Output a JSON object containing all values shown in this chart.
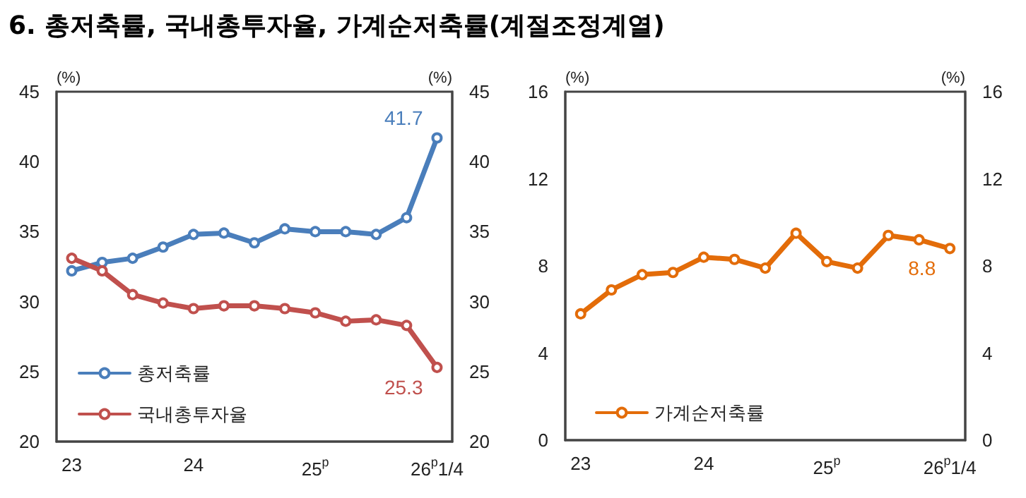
{
  "chart_data": [
    {
      "type": "line",
      "title": "6. 총저축률, 국내총투자율, 가계순저축률(계절조정계열)",
      "ylabel": "(%)",
      "y2label": "(%)",
      "categories": [
        "23",
        null,
        null,
        null,
        "24",
        null,
        null,
        null,
        "25$^{p}$",
        null,
        null,
        null,
        "26$^{p}$1/4"
      ],
      "ylim": [
        20,
        45
      ],
      "yticks": [
        20,
        25,
        30,
        35,
        40,
        45
      ],
      "y2lim": [
        20,
        45
      ],
      "y2ticks": [
        20,
        25,
        30,
        35,
        40,
        45
      ],
      "grid": false,
      "legend": "bottom left",
      "marker": "circle",
      "line_style": "solid",
      "series": [
        {
          "name": "총저축률",
          "color": "#4a7ebb",
          "values": [
            32.2,
            32.8,
            33.1,
            33.9,
            34.8,
            34.9,
            34.2,
            35.2,
            35.0,
            35.0,
            34.8,
            36.0,
            41.7
          ],
          "value_labels": [
            null,
            null,
            null,
            null,
            null,
            null,
            null,
            null,
            null,
            null,
            null,
            null,
            "41.7"
          ]
        },
        {
          "name": "국내총투자율",
          "color": "#c0504d",
          "values": [
            33.1,
            32.2,
            30.5,
            29.9,
            29.5,
            29.7,
            29.7,
            29.5,
            29.2,
            28.6,
            28.7,
            28.3,
            25.3
          ],
          "value_labels": [
            null,
            null,
            null,
            null,
            null,
            null,
            null,
            null,
            null,
            null,
            null,
            null,
            "25.3"
          ]
        }
      ]
    },
    {
      "type": "line",
      "ylabel": "(%)",
      "y2label": "(%)",
      "categories": [
        "23",
        null,
        null,
        null,
        "24",
        null,
        null,
        null,
        "25$^{p}$",
        null,
        null,
        null,
        "26$^{p}$1/4"
      ],
      "ylim": [
        0,
        16
      ],
      "yticks": [
        0,
        4,
        8,
        12,
        16
      ],
      "y2lim": [
        0,
        16
      ],
      "y2ticks": [
        0,
        4,
        8,
        12,
        16
      ],
      "grid": false,
      "legend": "bottom left",
      "marker": "circle",
      "line_style": "solid",
      "series": [
        {
          "name": "가계순저축률",
          "color": "#e36c09",
          "values": [
            5.8,
            6.9,
            7.6,
            7.7,
            8.4,
            8.3,
            7.9,
            9.5,
            8.2,
            7.9,
            9.4,
            9.2,
            8.8
          ],
          "value_labels": [
            null,
            null,
            null,
            null,
            null,
            null,
            null,
            null,
            null,
            null,
            null,
            null,
            "8.8"
          ]
        }
      ]
    }
  ]
}
